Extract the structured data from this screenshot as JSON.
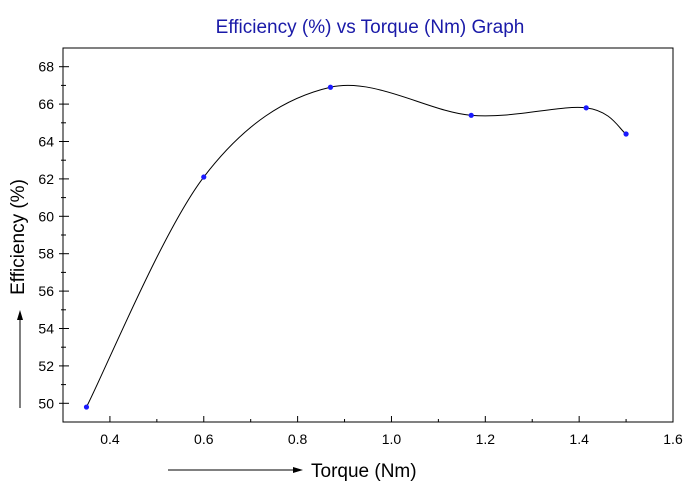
{
  "chart_data": {
    "type": "line",
    "title": "Efficiency (%) vs Torque (Nm) Graph",
    "xlabel": "Torque (Nm)",
    "ylabel": "Efficiency (%)",
    "xlim": [
      0.3,
      1.6
    ],
    "ylim": [
      49,
      69
    ],
    "xticks": [
      "0.4",
      "0.6",
      "0.8",
      "1.0",
      "1.2",
      "1.4",
      "1.6"
    ],
    "xtick_values": [
      0.4,
      0.6,
      0.8,
      1.0,
      1.2,
      1.4,
      1.6
    ],
    "yticks": [
      "50",
      "52",
      "54",
      "56",
      "58",
      "60",
      "62",
      "64",
      "66",
      "68"
    ],
    "ytick_values": [
      50,
      52,
      54,
      56,
      58,
      60,
      62,
      64,
      66,
      68
    ],
    "grid": false,
    "series": [
      {
        "x": [
          0.35,
          0.6,
          0.87,
          1.17,
          1.415,
          1.5
        ],
        "y": [
          49.8,
          62.1,
          66.9,
          65.4,
          65.8,
          64.4
        ]
      }
    ],
    "colors": {
      "title": "#1a1aa8",
      "point": "#1a1aff",
      "line": "#000000"
    }
  }
}
